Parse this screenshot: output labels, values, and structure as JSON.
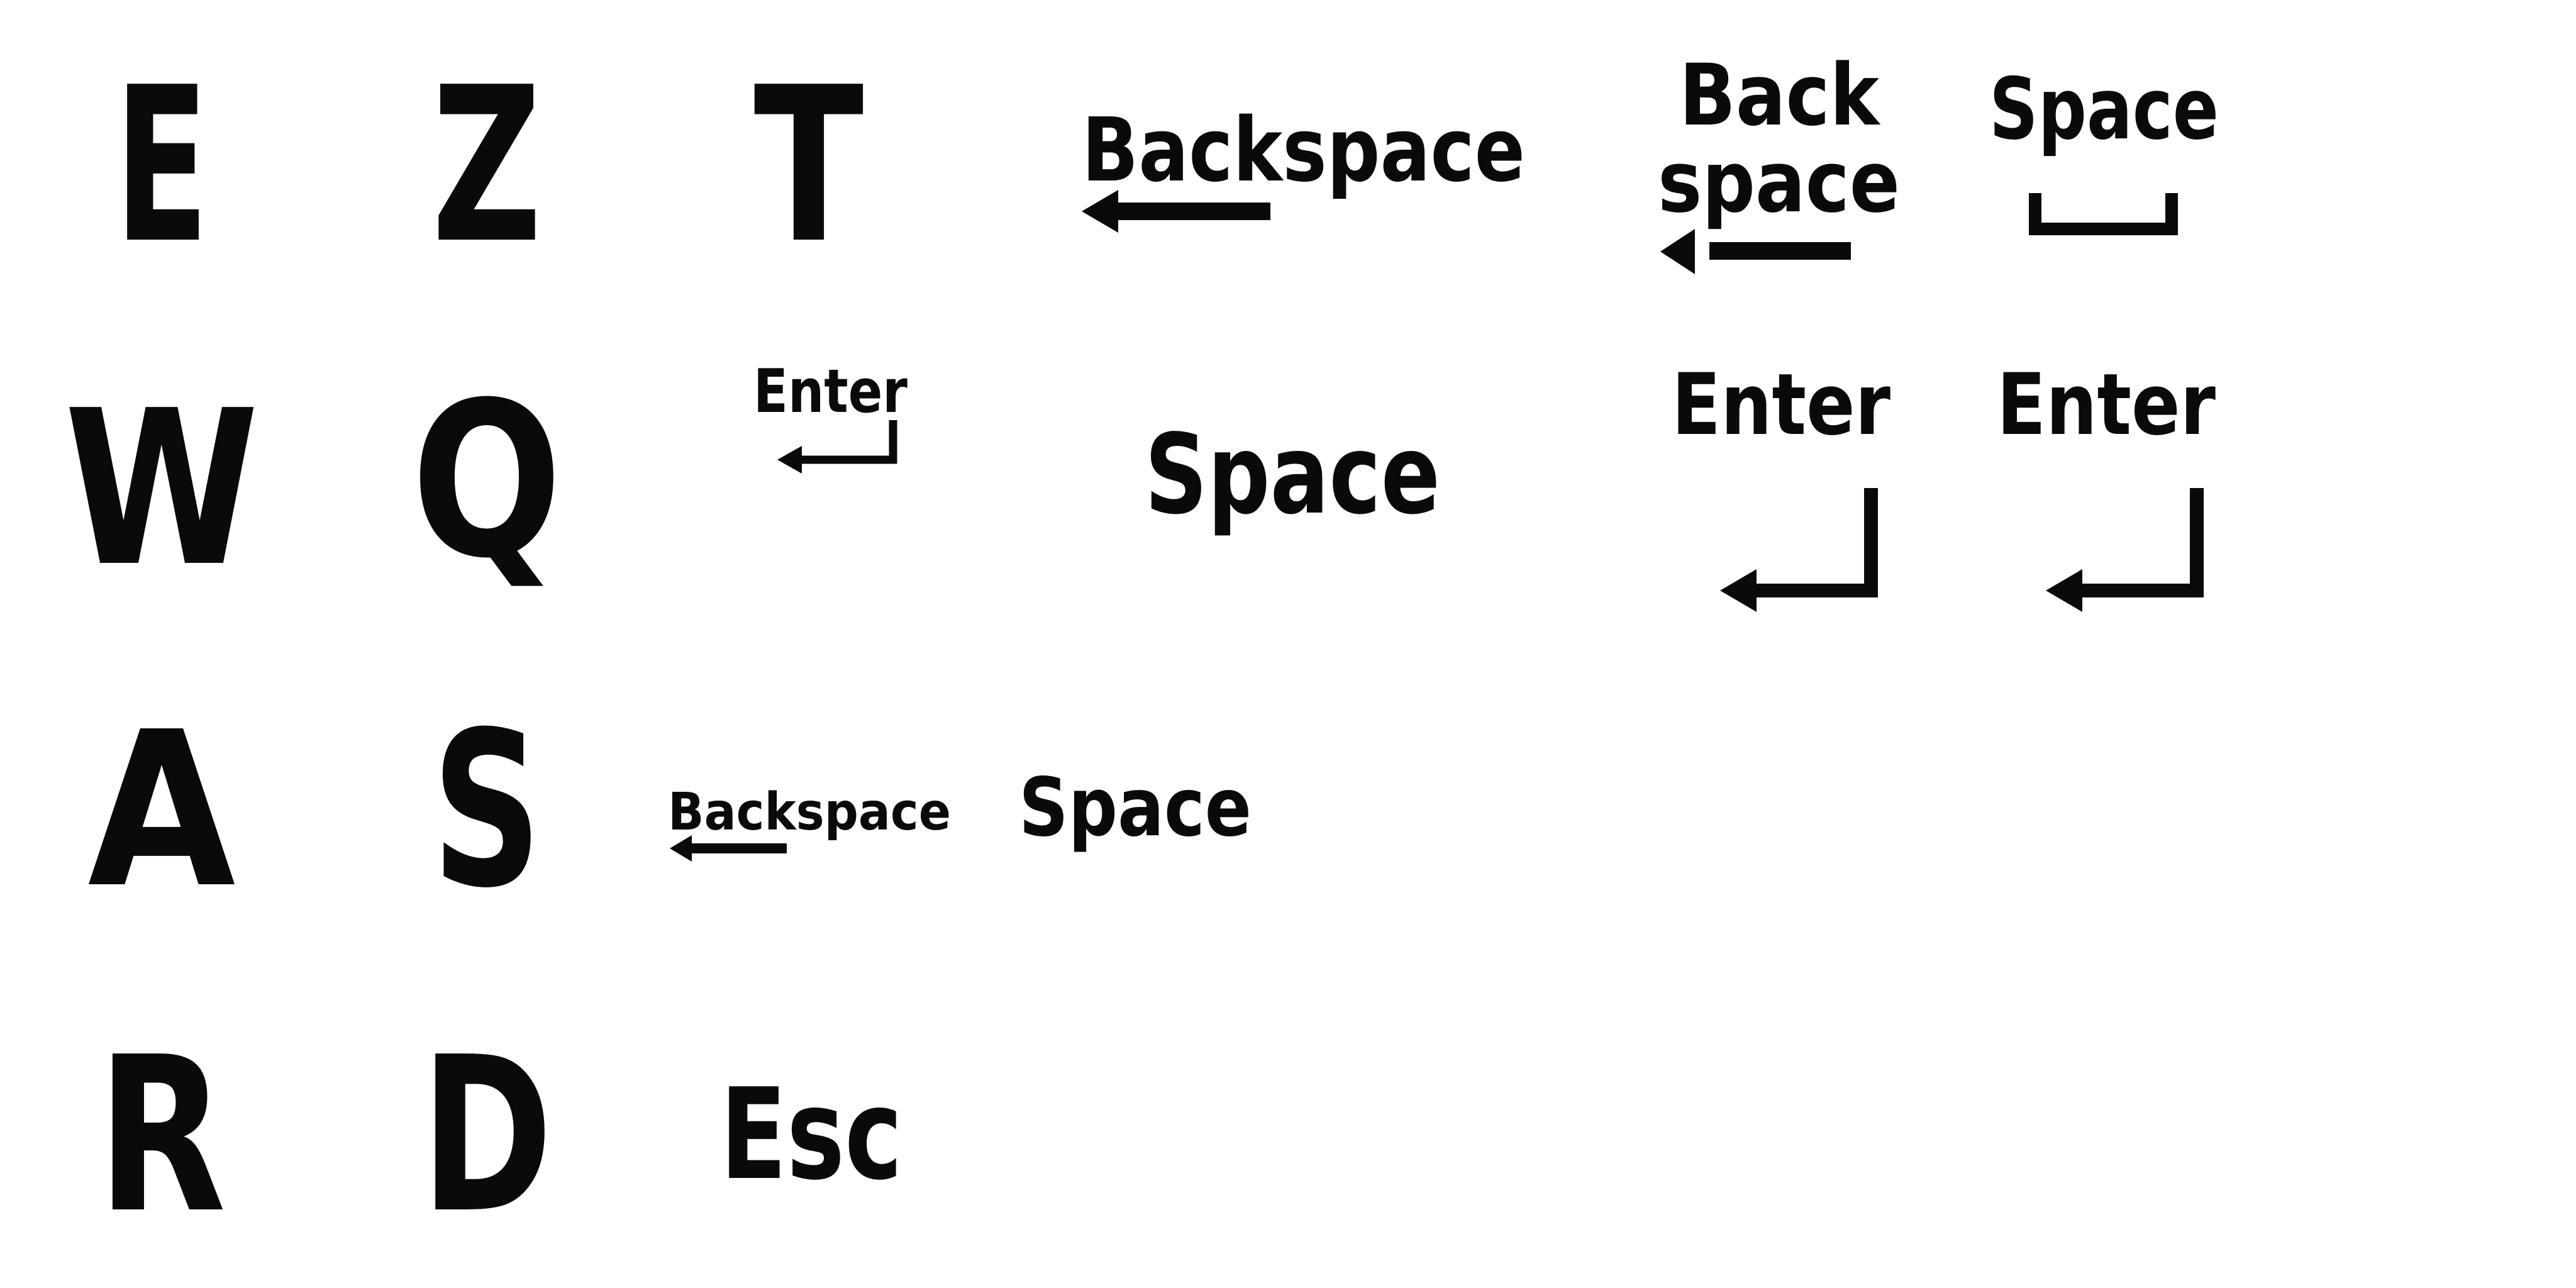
{
  "glyphs": {
    "e": "E",
    "z": "Z",
    "t": "T",
    "w": "W",
    "q": "Q",
    "a": "A",
    "s": "S",
    "r": "R",
    "d": "D"
  },
  "keys": {
    "backspace_wide": "Backspace",
    "backspace_stacked_top": "Back",
    "backspace_stacked_bottom": "space",
    "space_bracket": "Space",
    "enter_small": "Enter",
    "space_large": "Space",
    "enter_large_1": "Enter",
    "enter_large_2": "Enter",
    "backspace_small": "Backspace",
    "space_medium": "Space",
    "esc": "Esc"
  },
  "colors": {
    "ink": "#0a0a0a",
    "background": "#ffffff"
  },
  "icons": {
    "backspace_arrow": "left-arrow-icon",
    "space_bracket": "space-bracket-icon",
    "enter_arrow": "enter-return-arrow-icon"
  }
}
